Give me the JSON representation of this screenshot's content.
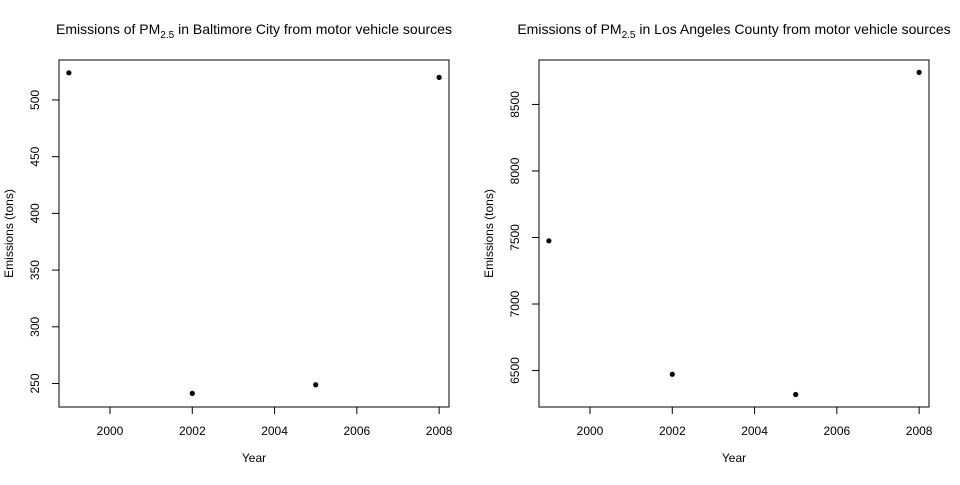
{
  "chart_data": [
    {
      "type": "scatter",
      "title": {
        "prefix": "Emissions of PM",
        "subscript": "2.5",
        "suffix": " in Baltimore City from motor vehicle sources"
      },
      "xlabel": "Year",
      "ylabel": "Emissions (tons)",
      "xlim": [
        1998.76,
        2008.24
      ],
      "ylim": [
        229.3,
        535.2
      ],
      "xticks": [
        2000,
        2002,
        2004,
        2006,
        2008
      ],
      "yticks": [
        250,
        300,
        350,
        400,
        450,
        500
      ],
      "grid": false,
      "legend": "none",
      "series": [
        {
          "x": [
            1999,
            2002,
            2005,
            2008
          ],
          "y": [
            523.9,
            241.3,
            248.9,
            519.9
          ]
        }
      ]
    },
    {
      "type": "scatter",
      "title": {
        "prefix": "Emissions of PM",
        "subscript": "2.5",
        "suffix": " in Los Angeles County from motor vehicle sources"
      },
      "xlabel": "Year",
      "ylabel": "Emissions (tons)",
      "xlim": [
        1998.76,
        2008.24
      ],
      "ylim": [
        6226,
        8834
      ],
      "xticks": [
        2000,
        2002,
        2004,
        2006,
        2008
      ],
      "yticks": [
        6500,
        7000,
        7500,
        8000,
        8500
      ],
      "grid": false,
      "legend": "none",
      "series": [
        {
          "x": [
            1999,
            2002,
            2005,
            2008
          ],
          "y": [
            7475,
            6472,
            6320,
            8741
          ]
        }
      ]
    }
  ],
  "colors": {
    "points": "#000000",
    "axes": "#000000",
    "background": "#ffffff"
  }
}
